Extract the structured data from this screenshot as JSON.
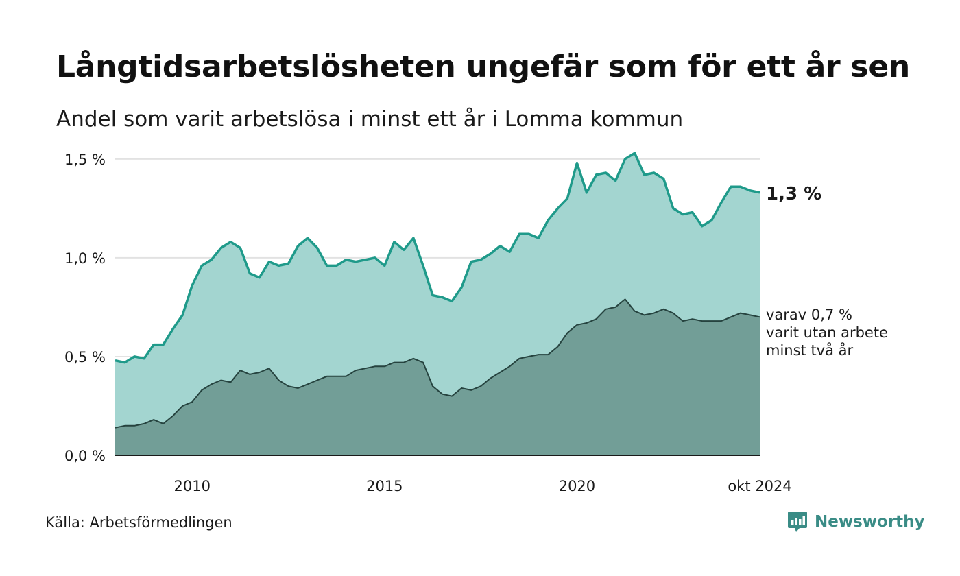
{
  "title": "Långtidsarbetslösheten ungefär som för ett år sen",
  "subtitle": "Andel som varit arbetslösa i minst ett år i Lomma kommun",
  "source": "Källa: Arbetsförmedlingen",
  "brand": {
    "name": "Newsworthy",
    "logo_icon": "newsworthy-chart-bubble-icon"
  },
  "colors": {
    "series1_line": "#1f9a8a",
    "series1_fill": "#a3d5d0",
    "series2_line": "#26433f",
    "series2_fill": "#729e97",
    "grid": "#e2e2e2",
    "brand": "#3a8c86"
  },
  "chart_data": {
    "type": "area",
    "x_start": "2008-01",
    "x_end": "2024-10",
    "xlim": [
      "2008-01",
      "2024-10"
    ],
    "ylim": [
      0,
      1.6
    ],
    "grid": "horizontal",
    "xticks": [
      {
        "x": "2010-01",
        "label": "2010"
      },
      {
        "x": "2015-01",
        "label": "2015"
      },
      {
        "x": "2020-01",
        "label": "2020"
      },
      {
        "x": "2024-10",
        "label": "okt 2024"
      }
    ],
    "yticks": [
      {
        "value": 0,
        "label": "0,0 %"
      },
      {
        "value": 0.5,
        "label": "0,5 %"
      },
      {
        "value": 1.0,
        "label": "1,0 %"
      },
      {
        "value": 1.5,
        "label": "1,5 %"
      }
    ],
    "series": [
      {
        "label_lines": [
          "1,3 %"
        ],
        "x": [
          "2008-01",
          "2008-04",
          "2008-07",
          "2008-10",
          "2009-01",
          "2009-04",
          "2009-07",
          "2009-10",
          "2010-01",
          "2010-04",
          "2010-07",
          "2010-10",
          "2011-01",
          "2011-04",
          "2011-07",
          "2011-10",
          "2012-01",
          "2012-04",
          "2012-07",
          "2012-10",
          "2013-01",
          "2013-04",
          "2013-07",
          "2013-10",
          "2014-01",
          "2014-04",
          "2014-07",
          "2014-10",
          "2015-01",
          "2015-04",
          "2015-07",
          "2015-10",
          "2016-01",
          "2016-04",
          "2016-07",
          "2016-10",
          "2017-01",
          "2017-04",
          "2017-07",
          "2017-10",
          "2018-01",
          "2018-04",
          "2018-07",
          "2018-10",
          "2019-01",
          "2019-04",
          "2019-07",
          "2019-10",
          "2020-01",
          "2020-04",
          "2020-07",
          "2020-10",
          "2021-01",
          "2021-04",
          "2021-07",
          "2021-10",
          "2022-01",
          "2022-04",
          "2022-07",
          "2022-10",
          "2023-01",
          "2023-04",
          "2023-07",
          "2023-10",
          "2024-01",
          "2024-04",
          "2024-07",
          "2024-10"
        ],
        "values": [
          0.48,
          0.47,
          0.5,
          0.49,
          0.56,
          0.56,
          0.64,
          0.71,
          0.86,
          0.96,
          0.99,
          1.05,
          1.08,
          1.05,
          0.92,
          0.9,
          0.98,
          0.96,
          0.97,
          1.06,
          1.1,
          1.05,
          0.96,
          0.96,
          0.99,
          0.98,
          0.99,
          1.0,
          0.96,
          1.08,
          1.04,
          1.1,
          0.96,
          0.81,
          0.8,
          0.78,
          0.85,
          0.98,
          0.99,
          1.02,
          1.06,
          1.03,
          1.12,
          1.12,
          1.1,
          1.19,
          1.25,
          1.3,
          1.48,
          1.33,
          1.42,
          1.43,
          1.39,
          1.5,
          1.53,
          1.42,
          1.43,
          1.4,
          1.25,
          1.22,
          1.23,
          1.16,
          1.19,
          1.28,
          1.36,
          1.36,
          1.34,
          1.33
        ]
      },
      {
        "label_lines": [
          "varav 0,7 %",
          "varit utan arbete",
          "minst två år"
        ],
        "x": [
          "2008-01",
          "2008-04",
          "2008-07",
          "2008-10",
          "2009-01",
          "2009-04",
          "2009-07",
          "2009-10",
          "2010-01",
          "2010-04",
          "2010-07",
          "2010-10",
          "2011-01",
          "2011-04",
          "2011-07",
          "2011-10",
          "2012-01",
          "2012-04",
          "2012-07",
          "2012-10",
          "2013-01",
          "2013-04",
          "2013-07",
          "2013-10",
          "2014-01",
          "2014-04",
          "2014-07",
          "2014-10",
          "2015-01",
          "2015-04",
          "2015-07",
          "2015-10",
          "2016-01",
          "2016-04",
          "2016-07",
          "2016-10",
          "2017-01",
          "2017-04",
          "2017-07",
          "2017-10",
          "2018-01",
          "2018-04",
          "2018-07",
          "2018-10",
          "2019-01",
          "2019-04",
          "2019-07",
          "2019-10",
          "2020-01",
          "2020-04",
          "2020-07",
          "2020-10",
          "2021-01",
          "2021-04",
          "2021-07",
          "2021-10",
          "2022-01",
          "2022-04",
          "2022-07",
          "2022-10",
          "2023-01",
          "2023-04",
          "2023-07",
          "2023-10",
          "2024-01",
          "2024-04",
          "2024-07",
          "2024-10"
        ],
        "values": [
          0.14,
          0.15,
          0.15,
          0.16,
          0.18,
          0.16,
          0.2,
          0.25,
          0.27,
          0.33,
          0.36,
          0.38,
          0.37,
          0.43,
          0.41,
          0.42,
          0.44,
          0.38,
          0.35,
          0.34,
          0.36,
          0.38,
          0.4,
          0.4,
          0.4,
          0.43,
          0.44,
          0.45,
          0.45,
          0.47,
          0.47,
          0.49,
          0.47,
          0.35,
          0.31,
          0.3,
          0.34,
          0.33,
          0.35,
          0.39,
          0.42,
          0.45,
          0.49,
          0.5,
          0.51,
          0.51,
          0.55,
          0.62,
          0.66,
          0.67,
          0.69,
          0.74,
          0.75,
          0.79,
          0.73,
          0.71,
          0.72,
          0.74,
          0.72,
          0.68,
          0.69,
          0.68,
          0.68,
          0.68,
          0.7,
          0.72,
          0.71,
          0.7
        ]
      }
    ]
  }
}
